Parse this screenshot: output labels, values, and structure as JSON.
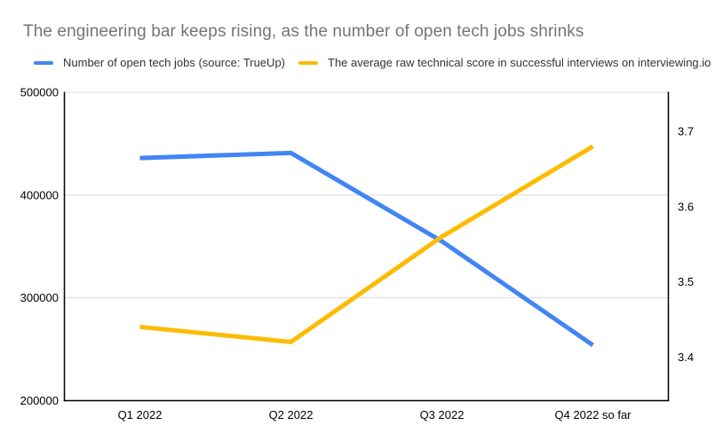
{
  "chart_data": {
    "type": "line",
    "title": "The engineering bar keeps rising, as the number of open tech jobs shrinks",
    "categories": [
      "Q1 2022",
      "Q2 2022",
      "Q3 2022",
      "Q4 2022 so far"
    ],
    "series": [
      {
        "name": "Number of open tech jobs (source: TrueUp)",
        "axis": "left",
        "color": "#4285F4",
        "values": [
          436000,
          441000,
          355000,
          254000
        ]
      },
      {
        "name": "The average raw technical score in successful interviews on interviewing.io",
        "axis": "right",
        "color": "#FBBC04",
        "values": [
          3.44,
          3.42,
          3.56,
          3.68
        ]
      }
    ],
    "left_axis": {
      "min": 200000,
      "max": 500000,
      "ticks": [
        500000,
        400000,
        300000,
        200000
      ]
    },
    "right_axis": {
      "min": 3.342,
      "max": 3.752,
      "ticks": [
        3.7,
        3.6,
        3.5,
        3.4
      ]
    },
    "grid": true,
    "legend_position": "top",
    "styles": {
      "gridline_color": "#dadada",
      "axis_line_color": "#000000",
      "axis_label_color": "#000000",
      "title_color": "#757575",
      "line_width": 5
    }
  }
}
